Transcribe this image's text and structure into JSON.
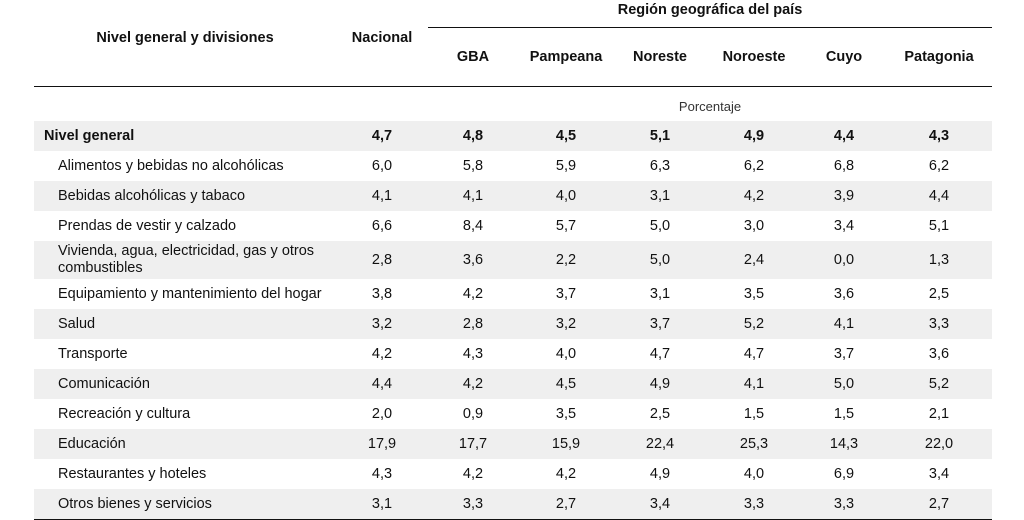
{
  "headers": {
    "label": "Nivel general y divisiones",
    "nacional": "Nacional",
    "region_group": "Región geográfica del país",
    "regions": [
      "GBA",
      "Pampeana",
      "Noreste",
      "Noroeste",
      "Cuyo",
      "Patagonia"
    ]
  },
  "unit": "Porcentaje",
  "rows": [
    {
      "label": "Nivel general",
      "values": [
        "4,7",
        "4,8",
        "4,5",
        "5,1",
        "4,9",
        "4,4",
        "4,3"
      ]
    },
    {
      "label": "Alimentos y bebidas no alcohólicas",
      "values": [
        "6,0",
        "5,8",
        "5,9",
        "6,3",
        "6,2",
        "6,8",
        "6,2"
      ]
    },
    {
      "label": "Bebidas alcohólicas y tabaco",
      "values": [
        "4,1",
        "4,1",
        "4,0",
        "3,1",
        "4,2",
        "3,9",
        "4,4"
      ]
    },
    {
      "label": "Prendas de vestir y calzado",
      "values": [
        "6,6",
        "8,4",
        "5,7",
        "5,0",
        "3,0",
        "3,4",
        "5,1"
      ]
    },
    {
      "label": "Vivienda, agua, electricidad, gas y otros combustibles",
      "values": [
        "2,8",
        "3,6",
        "2,2",
        "5,0",
        "2,4",
        "0,0",
        "1,3"
      ]
    },
    {
      "label": "Equipamiento y mantenimiento del hogar",
      "values": [
        "3,8",
        "4,2",
        "3,7",
        "3,1",
        "3,5",
        "3,6",
        "2,5"
      ]
    },
    {
      "label": "Salud",
      "values": [
        "3,2",
        "2,8",
        "3,2",
        "3,7",
        "5,2",
        "4,1",
        "3,3"
      ]
    },
    {
      "label": "Transporte",
      "values": [
        "4,2",
        "4,3",
        "4,0",
        "4,7",
        "4,7",
        "3,7",
        "3,6"
      ]
    },
    {
      "label": "Comunicación",
      "values": [
        "4,4",
        "4,2",
        "4,5",
        "4,9",
        "4,1",
        "5,0",
        "5,2"
      ]
    },
    {
      "label": "Recreación y cultura",
      "values": [
        "2,0",
        "0,9",
        "3,5",
        "2,5",
        "1,5",
        "1,5",
        "2,1"
      ]
    },
    {
      "label": "Educación",
      "values": [
        "17,9",
        "17,7",
        "15,9",
        "22,4",
        "25,3",
        "14,3",
        "22,0"
      ]
    },
    {
      "label": "Restaurantes y hoteles",
      "values": [
        "4,3",
        "4,2",
        "4,2",
        "4,9",
        "4,0",
        "6,9",
        "3,4"
      ]
    },
    {
      "label": "Otros bienes y servicios",
      "values": [
        "3,1",
        "3,3",
        "2,7",
        "3,4",
        "3,3",
        "3,3",
        "2,7"
      ]
    }
  ],
  "colors": {
    "shade": "#efefef",
    "rule": "#111111"
  }
}
